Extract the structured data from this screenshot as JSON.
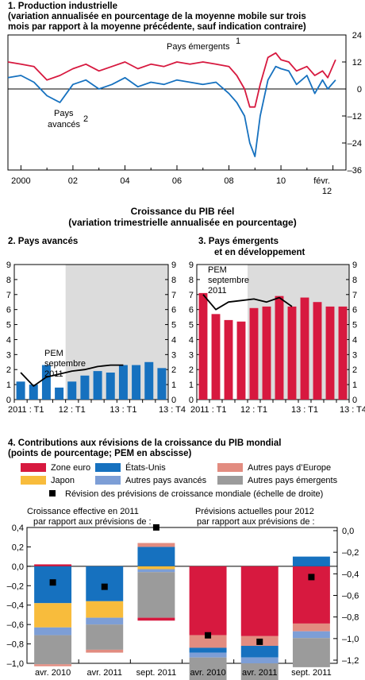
{
  "colors": {
    "red": "#d7193f",
    "blue": "#1671bf",
    "black": "#000000",
    "shade": "#dcdcdc",
    "zone_euro": "#d7193f",
    "etats_unis": "#1671bf",
    "autres_europe": "#e28c80",
    "japon": "#f8bc3c",
    "autres_avances": "#7d9ed6",
    "autres_emergents": "#9b9b9b"
  },
  "panel1": {
    "title": "1. Production industrielle",
    "subtitle_1": "(variation annualisée en pourcentage de la moyenne mobile sur trois",
    "subtitle_2": "mois par rapport à la moyenne précédente, sauf indication contraire)",
    "label_emerging": "Pays émergents",
    "label_emerging_sup": "1",
    "label_advanced_1": "Pays",
    "label_advanced_2": "avancés",
    "label_advanced_sup": "2",
    "right_ticks": [
      "24",
      "12",
      "0",
      "–12",
      "–24",
      "–36"
    ],
    "x_ticks": [
      "2000",
      "02",
      "04",
      "06",
      "08",
      "10",
      "févr."
    ],
    "x_tick_extra": "12"
  },
  "gdp_header": {
    "title_1": "Croissance du PIB réel",
    "title_2": "(variation trimestrielle annualisée en pourcentage)"
  },
  "panel2": {
    "title": "2. Pays avancés",
    "pem_label_1": "PEM",
    "pem_label_2": "septembre",
    "pem_label_3": "2011",
    "y_ticks": [
      "9",
      "8",
      "7",
      "6",
      "5",
      "4",
      "3",
      "2",
      "1",
      "0"
    ],
    "x_labels": [
      "2011 : T1",
      "12 : T1",
      "13 : T1",
      "13 : T4"
    ]
  },
  "panel3": {
    "title_1": "3. Pays émergents",
    "title_2": "et en développement",
    "pem_label_1": "PEM",
    "pem_label_2": "septembre",
    "pem_label_3": "2011",
    "y_ticks": [
      "9",
      "8",
      "7",
      "6",
      "5",
      "4",
      "3",
      "2",
      "1",
      "0"
    ],
    "x_labels": [
      "2011 : T1",
      "12 : T1",
      "13 : T1",
      "13 : T4"
    ]
  },
  "panel4": {
    "title_1": "4. Contributions aux révisions de la croissance du PIB mondial",
    "title_2": "(points de pourcentage; PEM en abscisse)",
    "legend": {
      "zone_euro": "Zone euro",
      "etats_unis": "États-Unis",
      "autres_europe": "Autres pays d’Europe",
      "japon": "Japon",
      "autres_avances": "Autres pays avancés",
      "autres_emergents": "Autres pays émergents",
      "revision": "Révision des prévisions de croissance mondiale (échelle de droite)"
    },
    "note_left_1": "Croissance effective en 2011",
    "note_left_2": "par rapport aux prévisions de :",
    "note_right_1": "Prévisions actuelles pour 2012",
    "note_right_2": "par rapport aux prévisions de :",
    "left_ticks": [
      "0,4",
      "0,2",
      "0,0",
      "–0,2",
      "–0,4",
      "–0,6",
      "–0,8",
      "–1,0"
    ],
    "right_ticks": [
      "0,0",
      "–0,2",
      "–0,4",
      "–0,6",
      "–0,8",
      "–1,0",
      "–1,2"
    ],
    "x_labels": [
      "avr. 2010",
      "avr. 2011",
      "sept. 2011",
      "avr. 2010",
      "avr. 2011",
      "sept. 2011"
    ]
  },
  "chart_data": [
    {
      "type": "line",
      "title": "1. Production industrielle",
      "ylabel": "variation annualisée en pourcentage de la moyenne mobile sur trois mois",
      "ylim": [
        -36,
        24
      ],
      "x_range": [
        1999.5,
        2012.5
      ],
      "series": [
        {
          "name": "Pays émergents",
          "color": "#d7193f",
          "x": [
            1999.5,
            2000.0,
            2000.5,
            2001.0,
            2001.5,
            2002.0,
            2002.5,
            2003.0,
            2003.5,
            2004.0,
            2004.5,
            2005.0,
            2005.5,
            2006.0,
            2006.5,
            2007.0,
            2007.5,
            2008.0,
            2008.3,
            2008.6,
            2008.8,
            2009.0,
            2009.2,
            2009.5,
            2009.8,
            2010.0,
            2010.3,
            2010.6,
            2011.0,
            2011.3,
            2011.6,
            2011.8,
            2012.1
          ],
          "y": [
            12,
            11,
            10,
            4,
            6,
            9,
            11,
            8,
            10,
            12,
            9,
            11,
            10,
            12,
            11,
            12,
            11,
            10,
            6,
            0,
            -8,
            -8,
            2,
            14,
            16,
            13,
            12,
            8,
            10,
            6,
            8,
            5,
            13
          ]
        },
        {
          "name": "Pays avancés",
          "color": "#1671bf",
          "x": [
            1999.5,
            2000.0,
            2000.5,
            2001.0,
            2001.5,
            2002.0,
            2002.5,
            2003.0,
            2003.5,
            2004.0,
            2004.5,
            2005.0,
            2005.5,
            2006.0,
            2006.5,
            2007.0,
            2007.5,
            2008.0,
            2008.3,
            2008.6,
            2008.8,
            2009.0,
            2009.2,
            2009.5,
            2009.8,
            2010.0,
            2010.3,
            2010.6,
            2011.0,
            2011.3,
            2011.6,
            2011.8,
            2012.1
          ],
          "y": [
            5,
            6,
            3,
            -3,
            -6,
            2,
            4,
            0,
            2,
            5,
            1,
            3,
            2,
            4,
            3,
            2,
            3,
            -2,
            -6,
            -12,
            -24,
            -30,
            -12,
            4,
            10,
            9,
            8,
            2,
            6,
            -2,
            4,
            0,
            4
          ]
        }
      ]
    },
    {
      "type": "bar",
      "title": "2. Pays avancés",
      "categories": [
        "2011:T1",
        "2011:T2",
        "2011:T3",
        "2011:T4",
        "2012:T1",
        "2012:T2",
        "2012:T3",
        "2012:T4",
        "2013:T1",
        "2013:T2",
        "2013:T3",
        "2013:T4"
      ],
      "values": [
        1.2,
        1.0,
        2.3,
        0.8,
        1.2,
        1.6,
        1.9,
        1.8,
        2.3,
        2.3,
        2.5,
        2.1
      ],
      "line": {
        "name": "PEM septembre 2011",
        "values": [
          1.8,
          0.9,
          1.5,
          1.7,
          1.9,
          2.0,
          2.2,
          2.3,
          2.3
        ]
      },
      "projection_start": "2012:T1",
      "ylim": [
        0,
        9
      ]
    },
    {
      "type": "bar",
      "title": "3. Pays émergents et en développement",
      "categories": [
        "2011:T1",
        "2011:T2",
        "2011:T3",
        "2011:T4",
        "2012:T1",
        "2012:T2",
        "2012:T3",
        "2012:T4",
        "2013:T1",
        "2013:T2",
        "2013:T3",
        "2013:T4"
      ],
      "values": [
        7.1,
        5.7,
        5.3,
        5.2,
        6.1,
        6.2,
        6.9,
        6.2,
        6.8,
        6.5,
        6.2,
        6.2
      ],
      "line": {
        "name": "PEM septembre 2011",
        "values": [
          7.0,
          6.0,
          6.5,
          6.6,
          6.7,
          6.5,
          6.8,
          6.2
        ]
      },
      "projection_start": "2012:T1",
      "ylim": [
        0,
        9
      ]
    },
    {
      "type": "bar",
      "title": "4. Contributions aux révisions de la croissance du PIB mondial",
      "categories": [
        "avr. 2010",
        "avr. 2011",
        "sept. 2011",
        "avr. 2010",
        "avr. 2011",
        "sept. 2011"
      ],
      "stacked": true,
      "ylim": [
        -1.0,
        0.4
      ],
      "y2lim": [
        -1.2,
        0.0
      ],
      "series": [
        {
          "name": "Zone euro",
          "values": [
            0.02,
            0.0,
            -0.03,
            -0.71,
            -0.72,
            -0.59
          ]
        },
        {
          "name": "États-Unis",
          "values": [
            -0.38,
            -0.36,
            0.2,
            -0.05,
            -0.12,
            0.1
          ]
        },
        {
          "name": "Autres pays d’Europe",
          "values": [
            -0.02,
            -0.03,
            0.04,
            -0.13,
            -0.1,
            -0.08
          ]
        },
        {
          "name": "Japon",
          "values": [
            -0.25,
            -0.17,
            -0.03,
            0.0,
            0.0,
            0.0
          ]
        },
        {
          "name": "Autres pays avancés",
          "values": [
            -0.08,
            -0.07,
            -0.03,
            -0.05,
            -0.06,
            -0.07
          ]
        },
        {
          "name": "Autres pays émergents",
          "values": [
            -0.3,
            -0.26,
            -0.47,
            -0.32,
            -0.27,
            -0.3
          ]
        }
      ],
      "markers": {
        "name": "Révision des prévisions de croissance mondiale (échelle de droite)",
        "values": [
          -0.48,
          -0.52,
          0.03,
          -0.97,
          -1.03,
          -0.43
        ]
      }
    }
  ]
}
